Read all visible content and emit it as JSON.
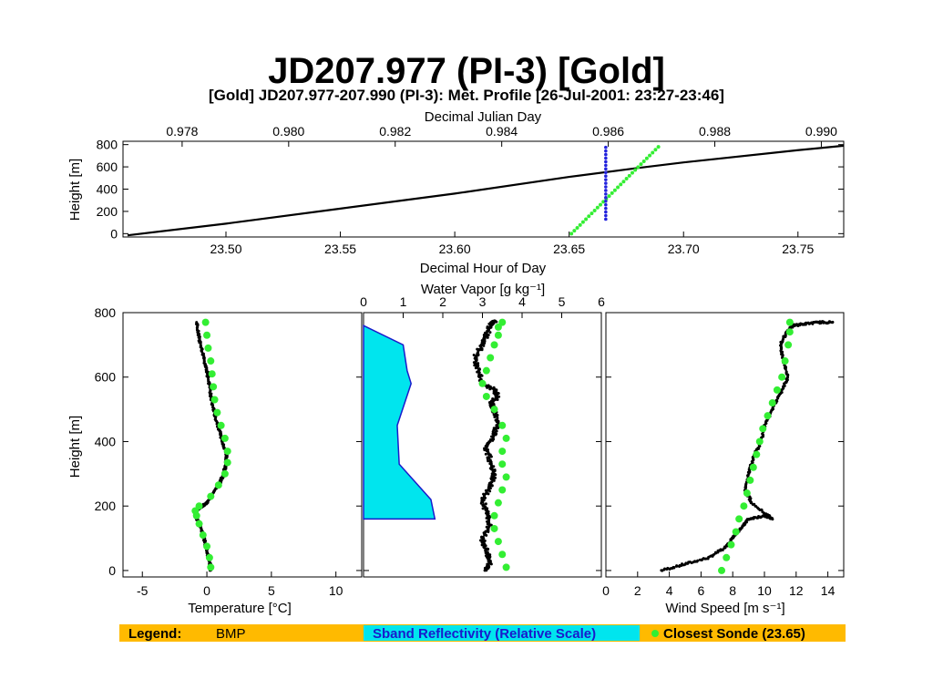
{
  "page": {
    "title": "JD207.977 (PI-3) [Gold]"
  },
  "chart_data": [
    {
      "type": "line",
      "title": "[Gold] JD207.977-207.990 (PI-3): Met. Profile [26-Jul-2001: 23:27-23:46]",
      "xlabel": "Decimal Hour of Day",
      "x2label": "Decimal Julian Day",
      "ylabel": "Height [m]",
      "xlim": [
        23.455,
        23.77
      ],
      "x2lim": [
        0.97689,
        0.99042
      ],
      "ylim": [
        -30,
        830
      ],
      "xticks": [
        "23.50",
        "23.55",
        "23.60",
        "23.65",
        "23.70",
        "23.75"
      ],
      "x2ticks": [
        "0.978",
        "0.980",
        "0.982",
        "0.984",
        "0.986",
        "0.988",
        "0.990"
      ],
      "yticks": [
        "0",
        "200",
        "400",
        "600",
        "800"
      ],
      "series": [
        {
          "name": "BMP",
          "color": "#000000",
          "x": [
            23.457,
            23.5,
            23.55,
            23.6,
            23.65,
            23.68,
            23.7,
            23.75,
            23.77
          ],
          "y": [
            -15,
            90,
            225,
            360,
            510,
            590,
            640,
            750,
            790
          ]
        },
        {
          "name": "Closest Sonde (23.65)",
          "color": "#33ee33",
          "x": [
            23.651,
            23.689
          ],
          "y": [
            0,
            780
          ]
        },
        {
          "color": "#2222dd",
          "x": [
            23.666,
            23.666
          ],
          "y": [
            130,
            775
          ]
        }
      ]
    },
    {
      "type": "line",
      "xlabel": "Temperature [°C]",
      "ylabel": "Height [m]",
      "xlim": [
        -6.5,
        12
      ],
      "ylim": [
        -20,
        800
      ],
      "xticks": [
        "-5",
        "0",
        "5",
        "10"
      ],
      "yticks": [
        "0",
        "200",
        "400",
        "600",
        "800"
      ],
      "series": [
        {
          "name": "BMP",
          "color": "#000000",
          "x": [
            0.3,
            0.2,
            0.0,
            -0.2,
            -0.5,
            -0.8,
            -0.9,
            -0.8,
            -0.5,
            0.0,
            0.5,
            1.0,
            1.3,
            1.5,
            1.5,
            1.3,
            1.0,
            0.7,
            0.4,
            0.2,
            0.0,
            -0.3,
            -0.6,
            -0.8
          ],
          "y": [
            0,
            30,
            60,
            100,
            140,
            160,
            175,
            185,
            195,
            210,
            240,
            270,
            300,
            330,
            360,
            390,
            430,
            470,
            520,
            570,
            620,
            670,
            720,
            770
          ]
        },
        {
          "name": "Closest Sonde (23.65)",
          "color": "#33ee33",
          "x": [
            0.3,
            0.2,
            0.0,
            -0.3,
            -0.6,
            -0.8,
            -0.9,
            -0.6,
            0.3,
            0.9,
            1.4,
            1.6,
            1.6,
            1.4,
            1.1,
            0.8,
            0.6,
            0.5,
            0.4,
            0.3,
            0.1,
            0.0,
            -0.1
          ],
          "y": [
            10,
            40,
            75,
            110,
            145,
            170,
            185,
            200,
            230,
            265,
            300,
            335,
            370,
            410,
            450,
            490,
            530,
            570,
            610,
            650,
            690,
            730,
            770
          ]
        }
      ]
    },
    {
      "type": "line",
      "x2label": "Water Vapor [g kg⁻¹]",
      "xlim": [
        0,
        6
      ],
      "ylim": [
        -20,
        800
      ],
      "x2ticks": [
        "0",
        "1",
        "2",
        "3",
        "4",
        "5",
        "6"
      ],
      "series": [
        {
          "name": "BMP",
          "color": "#000000",
          "x": [
            3.1,
            3.2,
            3.1,
            3.0,
            3.2,
            3.1,
            3.0,
            3.2,
            3.3,
            3.2,
            3.1,
            3.3,
            3.4,
            3.3,
            3.2,
            3.4,
            3.3,
            3.0,
            2.9,
            2.8,
            3.0,
            3.1,
            3.2,
            3.3
          ],
          "y": [
            0,
            30,
            60,
            100,
            140,
            180,
            220,
            260,
            300,
            340,
            380,
            420,
            460,
            500,
            520,
            540,
            560,
            580,
            620,
            660,
            700,
            730,
            760,
            775
          ]
        },
        {
          "name": "Sband Reflectivity (Relative Scale)",
          "color": "#1a1acc",
          "fill": "#00e5ee",
          "x": [
            0,
            1.8,
            1.7,
            0.9,
            0.85,
            1.2,
            1.1,
            1.0,
            0
          ],
          "y": [
            160,
            160,
            220,
            330,
            450,
            580,
            620,
            700,
            760
          ]
        },
        {
          "name": "Closest Sonde (23.65)",
          "color": "#33ee33",
          "x": [
            3.6,
            3.5,
            3.4,
            3.3,
            3.3,
            3.4,
            3.5,
            3.6,
            3.5,
            3.5,
            3.6,
            3.5,
            3.3,
            3.1,
            3.0,
            3.1,
            3.2,
            3.3,
            3.4,
            3.4,
            3.5
          ],
          "y": [
            10,
            50,
            90,
            130,
            170,
            210,
            250,
            290,
            330,
            370,
            410,
            450,
            500,
            540,
            580,
            620,
            660,
            700,
            730,
            755,
            770
          ]
        }
      ]
    },
    {
      "type": "line",
      "xlabel": "Wind Speed [m s⁻¹]",
      "xlim": [
        0,
        15
      ],
      "ylim": [
        -20,
        800
      ],
      "xticks": [
        "0",
        "2",
        "4",
        "6",
        "8",
        "10",
        "12",
        "14"
      ],
      "series": [
        {
          "name": "BMP",
          "color": "#000000",
          "x": [
            3.5,
            5.0,
            6.5,
            7.5,
            8.0,
            8.5,
            9.0,
            10.0,
            10.5,
            9.2,
            8.8,
            9.0,
            9.3,
            9.8,
            10.0,
            10.5,
            11.0,
            11.5,
            11.2,
            11.0,
            11.4,
            11.8,
            12.5,
            13.5,
            14.3
          ],
          "y": [
            0,
            20,
            40,
            70,
            100,
            130,
            160,
            170,
            160,
            210,
            250,
            300,
            350,
            400,
            450,
            500,
            550,
            600,
            650,
            700,
            740,
            760,
            765,
            770,
            770
          ]
        },
        {
          "name": "Closest Sonde (23.65)",
          "color": "#33ee33",
          "x": [
            7.3,
            7.6,
            7.9,
            8.2,
            8.4,
            8.7,
            8.9,
            9.1,
            9.3,
            9.5,
            9.7,
            9.9,
            10.2,
            10.5,
            10.8,
            11.1,
            11.3,
            11.5,
            11.6,
            11.6
          ],
          "y": [
            0,
            40,
            80,
            120,
            160,
            200,
            240,
            280,
            320,
            360,
            400,
            440,
            480,
            520,
            560,
            600,
            650,
            700,
            740,
            770
          ]
        }
      ]
    }
  ],
  "legend": {
    "label": "Legend:",
    "items": [
      {
        "name": "BMP"
      },
      {
        "name": "Sband Reflectivity (Relative Scale)"
      },
      {
        "name": "Closest Sonde (23.65)"
      }
    ]
  }
}
